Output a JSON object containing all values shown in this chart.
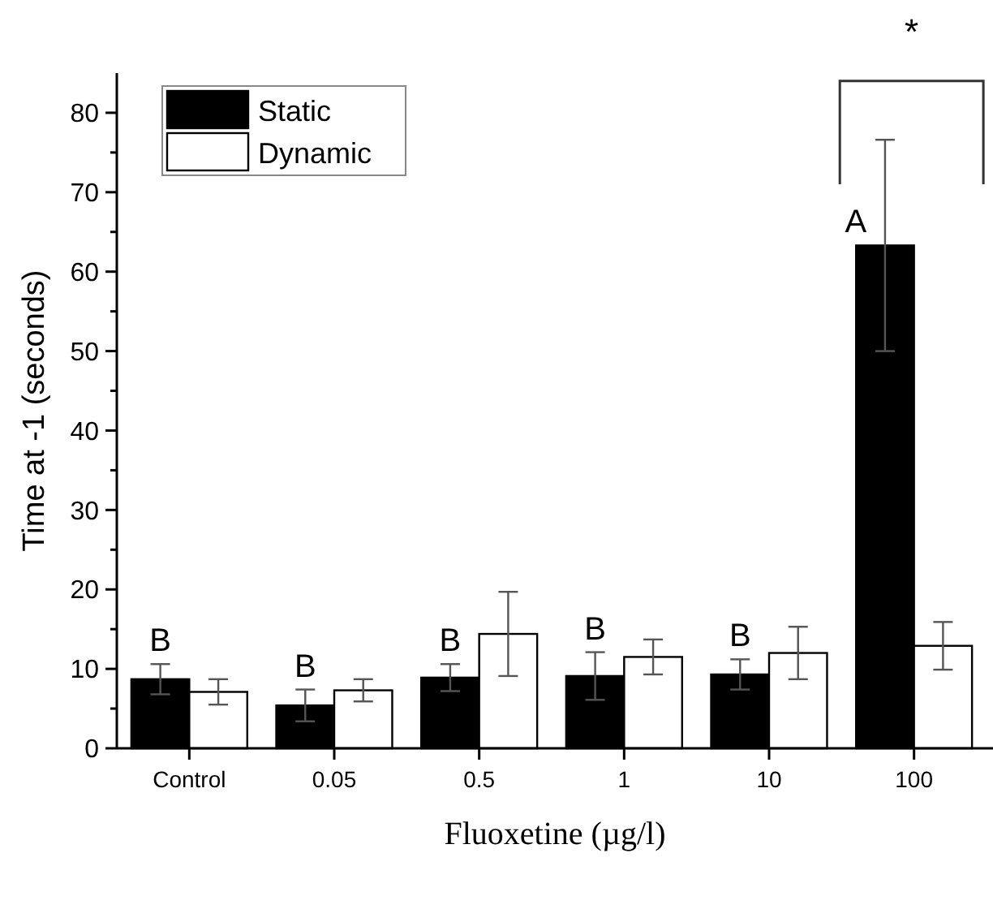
{
  "chart_data": {
    "type": "bar",
    "xlabel": "Fluoxetine (µg/l)",
    "ylabel": "Time at -1 (seconds)",
    "categories": [
      "Control",
      "0.05",
      "0.5",
      "1",
      "10",
      "100"
    ],
    "series": [
      {
        "name": "Static",
        "color": "#000000",
        "values": [
          8.7,
          5.4,
          8.9,
          9.1,
          9.3,
          63.3
        ],
        "errors": [
          1.9,
          2.0,
          1.7,
          3.0,
          1.9,
          13.3
        ]
      },
      {
        "name": "Dynamic",
        "color": "#ffffff",
        "values": [
          7.1,
          7.3,
          14.4,
          11.5,
          12.0,
          12.9
        ],
        "errors": [
          1.6,
          1.4,
          5.3,
          2.2,
          3.3,
          3.0
        ]
      }
    ],
    "ylim": [
      0,
      85
    ],
    "yticks": [
      0,
      {
        "value": 5,
        "label": null
      },
      10,
      {
        "value": 15,
        "label": null
      },
      20,
      {
        "value": 25,
        "label": null
      },
      30,
      {
        "value": 35,
        "label": null
      },
      40,
      {
        "value": 45,
        "label": null
      },
      50,
      {
        "value": 55,
        "label": null
      },
      60,
      {
        "value": 65,
        "label": null
      },
      70,
      {
        "value": 75,
        "label": null
      },
      80
    ],
    "legend": "top left",
    "grid": false,
    "annotations": [
      {
        "text": "B",
        "x": "Control",
        "y": 8.7
      },
      {
        "text": "B",
        "x": "0.05",
        "y": 5.4
      },
      {
        "text": "B",
        "x": "0.5",
        "y": 8.9
      },
      {
        "text": "B",
        "x": "1",
        "y": 9.1
      },
      {
        "text": "B",
        "x": "10",
        "y": 9.3
      },
      {
        "text": "A",
        "x": "100",
        "y": 63.3
      },
      "*"
    ]
  }
}
